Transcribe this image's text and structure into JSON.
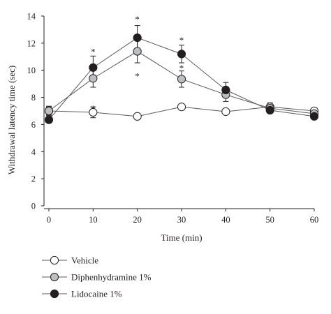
{
  "chart_data": {
    "type": "line",
    "xlabel": "Time (min)",
    "ylabel": "Withdrawal latency time (sec)",
    "x": [
      0,
      10,
      20,
      30,
      40,
      50,
      60
    ],
    "xlim": [
      0,
      60
    ],
    "ylim": [
      0,
      14
    ],
    "xticks": [
      "0",
      "10",
      "20",
      "30",
      "40",
      "50",
      "60"
    ],
    "yticks": [
      "0",
      "2",
      "4",
      "6",
      "8",
      "10",
      "12",
      "14"
    ],
    "grid": false,
    "legend_position": "bottom-left",
    "series": [
      {
        "name": "Vehicle",
        "marker": "open-circle",
        "fill": "#ffffff",
        "values": [
          7.0,
          6.9,
          6.6,
          7.3,
          6.95,
          7.3,
          7.0
        ],
        "errors": [
          0.35,
          0.4,
          0.2,
          0.15,
          0.15,
          0.3,
          0.2
        ]
      },
      {
        "name": "Diphenhydramine 1%",
        "marker": "gray-circle",
        "fill": "#bcbec0",
        "values": [
          7.0,
          9.4,
          11.4,
          9.35,
          8.2,
          7.2,
          6.8
        ],
        "errors": [
          0.3,
          0.65,
          0.85,
          0.6,
          0.5,
          0.25,
          0.25
        ]
      },
      {
        "name": "Lidocaine 1%",
        "marker": "filled-circle",
        "fill": "#231f20",
        "values": [
          6.35,
          10.2,
          12.4,
          11.2,
          8.55,
          7.05,
          6.6
        ],
        "errors": [
          0.2,
          0.85,
          0.9,
          0.65,
          0.55,
          0.2,
          0.2
        ]
      }
    ],
    "annotations": [
      {
        "text": "*",
        "x": 10,
        "y": 11.55
      },
      {
        "text": "*",
        "x": 10,
        "y": 7.35
      },
      {
        "text": "*",
        "x": 20,
        "y": 13.95
      },
      {
        "text": "*",
        "x": 20,
        "y": 9.75
      },
      {
        "text": "*",
        "x": 30,
        "y": 12.4
      },
      {
        "text": "*",
        "x": 30,
        "y": 10.35
      }
    ]
  }
}
